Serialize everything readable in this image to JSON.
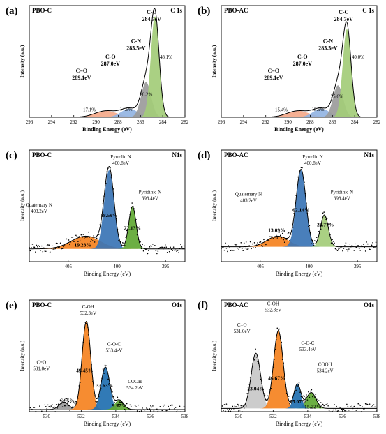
{
  "chart_data": [
    {
      "id": "a",
      "panel_label": "(a)",
      "sample": "PBO-C",
      "corner": "C 1s",
      "type": "area",
      "xlabel": "Binding Energy (eV)",
      "ylabel": "Intensity (a.u.)",
      "xlim": [
        296,
        282
      ],
      "ylim": [
        0,
        1.05
      ],
      "reversed": true,
      "xticks": [
        296,
        294,
        292,
        290,
        288,
        286,
        284,
        282
      ],
      "label_style": "bold",
      "components": [
        {
          "name": "C=O",
          "center": 289.1,
          "width": 2.0,
          "height": 0.06,
          "color": "#f4a98a",
          "pct": "17.1%"
        },
        {
          "name": "C-O",
          "center": 287.0,
          "width": 1.5,
          "height": 0.08,
          "color": "#93b4e2",
          "pct": "14.6%"
        },
        {
          "name": "C-N",
          "center": 285.5,
          "width": 0.9,
          "height": 0.33,
          "color": "#9b9b9b",
          "pct": "20.2%"
        },
        {
          "name": "C-C",
          "center": 284.7,
          "width": 0.75,
          "height": 0.95,
          "color": "#a3cc78",
          "pct": "48.1%"
        }
      ],
      "peak_labels": [
        {
          "line1": "C=O",
          "line2": "289.1eV",
          "x": 291.3,
          "y": 0.42
        },
        {
          "line1": "C-O",
          "line2": "287.0eV",
          "x": 288.7,
          "y": 0.55
        },
        {
          "line1": "C-N",
          "line2": "285.5eV",
          "x": 286.4,
          "y": 0.7
        },
        {
          "line1": "C-C",
          "line2": "284.7eV",
          "x": 285.0,
          "y": 0.97
        }
      ],
      "pct_positions": [
        [
          290.6,
          0.055
        ],
        [
          287.3,
          0.06
        ],
        [
          285.5,
          0.2
        ],
        [
          283.7,
          0.55
        ]
      ]
    },
    {
      "id": "b",
      "panel_label": "(b)",
      "sample": "PBO-AC",
      "corner": "C 1s",
      "type": "area",
      "xlabel": "Binding Energy (eV)",
      "ylabel": "Intensity (a.u.)",
      "xlim": [
        296,
        282
      ],
      "ylim": [
        0,
        1.05
      ],
      "reversed": true,
      "xticks": [
        296,
        294,
        292,
        290,
        288,
        286,
        284,
        282
      ],
      "label_style": "bold",
      "components": [
        {
          "name": "C=O",
          "center": 289.1,
          "width": 2.0,
          "height": 0.06,
          "color": "#f4a98a",
          "pct": "15.4%"
        },
        {
          "name": "C-O",
          "center": 287.0,
          "width": 1.5,
          "height": 0.08,
          "color": "#93b4e2",
          "pct": "18.9%"
        },
        {
          "name": "C-N",
          "center": 285.5,
          "width": 0.9,
          "height": 0.3,
          "color": "#9b9b9b",
          "pct": "25.6%"
        },
        {
          "name": "C-C",
          "center": 284.7,
          "width": 0.75,
          "height": 0.83,
          "color": "#a3cc78",
          "pct": "40.0%"
        }
      ],
      "peak_labels": [
        {
          "line1": "C=O",
          "line2": "289.1eV",
          "x": 291.3,
          "y": 0.42
        },
        {
          "line1": "C-O",
          "line2": "287.0eV",
          "x": 288.7,
          "y": 0.55
        },
        {
          "line1": "C-N",
          "line2": "285.5eV",
          "x": 286.4,
          "y": 0.7
        },
        {
          "line1": "C-C",
          "line2": "284.7eV",
          "x": 285.0,
          "y": 0.97
        }
      ],
      "pct_positions": [
        [
          290.6,
          0.055
        ],
        [
          287.3,
          0.06
        ],
        [
          285.6,
          0.18
        ],
        [
          283.7,
          0.55
        ]
      ]
    },
    {
      "id": "c",
      "panel_label": "(c)",
      "sample": "PBO-C",
      "corner": "N1s",
      "type": "area",
      "xlabel": "Binding Energy (eV)",
      "ylabel": "Intensity (a.u.)",
      "xlim": [
        409,
        393
      ],
      "ylim": [
        0,
        1.05
      ],
      "reversed": true,
      "xticks": [
        405,
        400,
        395
      ],
      "baseline": 0.12,
      "label_style": "normal",
      "components": [
        {
          "name": "Quaternary N",
          "center": 403.2,
          "width": 3.0,
          "height": 0.12,
          "color": "#f5821f",
          "pct": "19.28%"
        },
        {
          "name": "Pyrrolic N",
          "center": 400.8,
          "width": 1.0,
          "height": 0.74,
          "color": "#3a74b5",
          "pct": "58.59%"
        },
        {
          "name": "Pyridinic N",
          "center": 398.4,
          "width": 0.75,
          "height": 0.4,
          "color": "#5fa833",
          "pct": "22.13%"
        }
      ],
      "peak_labels": [
        {
          "line1": "Quaternary N",
          "line2": "403.2eV",
          "x": 408.0,
          "y": 0.52
        },
        {
          "line1": "Pyrrolic N",
          "line2": "400.8eV",
          "x": 399.6,
          "y": 0.97
        },
        {
          "line1": "Pyridinic N",
          "line2": "398.4eV",
          "x": 396.6,
          "y": 0.64
        }
      ],
      "pct_positions": [
        [
          403.5,
          0.14
        ],
        [
          400.8,
          0.42
        ],
        [
          398.4,
          0.3
        ]
      ]
    },
    {
      "id": "d",
      "panel_label": "(d)",
      "sample": "PBO-AC",
      "corner": "N1s",
      "type": "area",
      "xlabel": "Binding Energy (eV)",
      "ylabel": "Intensity (a.u.)",
      "xlim": [
        409,
        393
      ],
      "ylim": [
        0,
        1.05
      ],
      "reversed": true,
      "xticks": [
        405,
        400,
        395
      ],
      "baseline": 0.14,
      "label_style": "normal",
      "components": [
        {
          "name": "Quaternary N",
          "center": 403.2,
          "width": 2.2,
          "height": 0.1,
          "color": "#f5821f",
          "pct": "13.09%"
        },
        {
          "name": "Pyrrolic N",
          "center": 400.8,
          "width": 1.0,
          "height": 0.72,
          "color": "#3a74b5",
          "pct": "62.14%"
        },
        {
          "name": "Pyridinic N",
          "center": 398.4,
          "width": 0.8,
          "height": 0.3,
          "color": "#a3cc78",
          "pct": "24.77%"
        }
      ],
      "peak_labels": [
        {
          "line1": "Quaternary N",
          "line2": "403.2eV",
          "x": 406.2,
          "y": 0.62
        },
        {
          "line1": "Pyrrolic N",
          "line2": "400.8eV",
          "x": 399.6,
          "y": 0.97
        },
        {
          "line1": "Pyridinic N",
          "line2": "398.4eV",
          "x": 396.6,
          "y": 0.64
        }
      ],
      "pct_positions": [
        [
          403.3,
          0.28
        ],
        [
          400.8,
          0.47
        ],
        [
          398.3,
          0.33
        ]
      ]
    },
    {
      "id": "e",
      "panel_label": "(e)",
      "sample": "PBO-C",
      "corner": "O1s",
      "type": "area",
      "xlabel": "Binding Energy (eV)",
      "ylabel": "Intensity (a.u.)",
      "xlim": [
        529,
        538
      ],
      "ylim": [
        0,
        1.05
      ],
      "reversed": false,
      "xticks": [
        530,
        532,
        534,
        536,
        538
      ],
      "baseline": 0.02,
      "label_style": "normal",
      "components": [
        {
          "name": "C=O",
          "center": 531.0,
          "width": 0.55,
          "height": 0.07,
          "color": "#9b9b9b",
          "pct": "6.95%"
        },
        {
          "name": "C-OH",
          "center": 532.3,
          "width": 0.5,
          "height": 0.83,
          "color": "#f5821f",
          "pct": "49.45%"
        },
        {
          "name": "C-O-C",
          "center": 533.4,
          "width": 0.5,
          "height": 0.4,
          "color": "#1f6fb0",
          "pct": "33.63%"
        },
        {
          "name": "COOH",
          "center": 534.2,
          "width": 0.5,
          "height": 0.09,
          "color": "#5fa833",
          "pct": "9.97%"
        }
      ],
      "peak_labels": [
        {
          "line1": "C=O",
          "line2": "531.0eV",
          "x": 529.7,
          "y": 0.45
        },
        {
          "line1": "C-OH",
          "line2": "532.3eV",
          "x": 532.4,
          "y": 0.97
        },
        {
          "line1": "C-O-C",
          "line2": "533.4eV",
          "x": 533.9,
          "y": 0.62
        },
        {
          "line1": "COOH",
          "line2": "534.2eV",
          "x": 535.1,
          "y": 0.27
        }
      ],
      "pct_positions": [
        [
          531.2,
          0.09
        ],
        [
          532.2,
          0.37
        ],
        [
          533.35,
          0.23
        ],
        [
          534.2,
          0.04
        ]
      ]
    },
    {
      "id": "f",
      "panel_label": "(f)",
      "sample": "PBO-AC",
      "corner": "O1s",
      "type": "area",
      "xlabel": "Binding Energy (eV)",
      "ylabel": "Intensity (a.u.)",
      "xlim": [
        529,
        538
      ],
      "ylim": [
        0,
        1.05
      ],
      "reversed": false,
      "xticks": [
        530,
        532,
        534,
        536,
        538
      ],
      "baseline": 0.03,
      "label_style": "normal",
      "components": [
        {
          "name": "C=O",
          "center": 531.0,
          "width": 0.55,
          "height": 0.52,
          "color": "#c8c8c8",
          "pct": "23.04%"
        },
        {
          "name": "C-OH",
          "center": 532.3,
          "width": 0.55,
          "height": 0.73,
          "color": "#f5821f",
          "pct": "46.67%"
        },
        {
          "name": "C-O-C",
          "center": 533.4,
          "width": 0.4,
          "height": 0.23,
          "color": "#1f6fb0",
          "pct": "15.07%"
        },
        {
          "name": "COOH",
          "center": 534.2,
          "width": 0.55,
          "height": 0.15,
          "color": "#5fa833",
          "pct": "15.22%"
        }
      ],
      "peak_labels": [
        {
          "line1": "C=O",
          "line2": "531.0eV",
          "x": 530.2,
          "y": 0.8
        },
        {
          "line1": "C-OH",
          "line2": "532.3eV",
          "x": 532.0,
          "y": 1.0
        },
        {
          "line1": "C-O-C",
          "line2": "533.4eV",
          "x": 534.0,
          "y": 0.63
        },
        {
          "line1": "COOH",
          "line2": "534.2eV",
          "x": 535.0,
          "y": 0.43
        }
      ],
      "pct_positions": [
        [
          531.0,
          0.2
        ],
        [
          532.2,
          0.3
        ],
        [
          533.45,
          0.08
        ],
        [
          534.3,
          0.03
        ]
      ]
    }
  ]
}
